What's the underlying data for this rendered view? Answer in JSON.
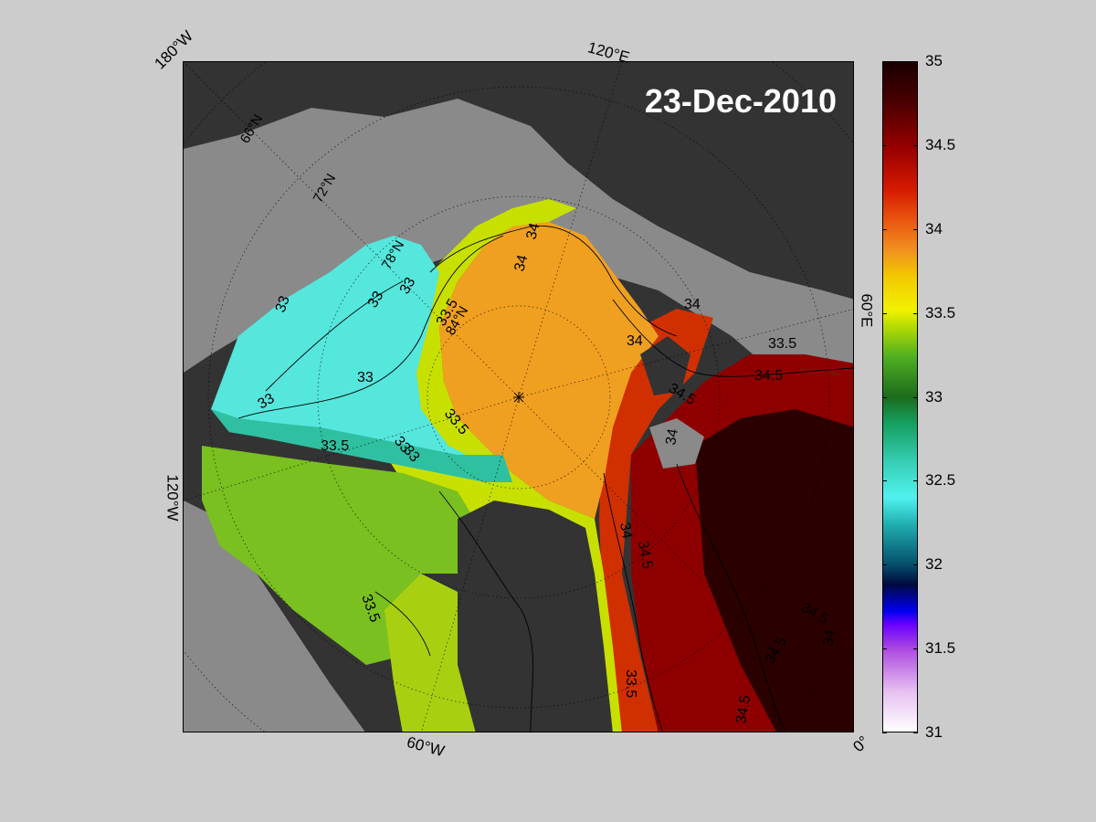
{
  "map": {
    "date": "23-Dec-2010",
    "longitude_labels": [
      "180°W",
      "120°E",
      "60°E",
      "0°",
      "60°W",
      "120°W"
    ],
    "latitude_labels": [
      "66°N",
      "72°N",
      "78°N",
      "84°N"
    ],
    "contour_labels": [
      "33",
      "33",
      "33",
      "33",
      "33",
      "33",
      "33",
      "33.5",
      "33.5",
      "33.5",
      "33.5",
      "33.5",
      "33.5",
      "34",
      "34",
      "34",
      "34",
      "34",
      "34",
      "34",
      "34.5",
      "34.5",
      "34.5",
      "34.5",
      "34.5",
      "34.5"
    ],
    "colors": {
      "background": "#cccccc",
      "land": "#333333",
      "sea_ice_mask": "#8a8a8a",
      "low_salinity": "#50f2ee",
      "mid_salinity": "#f2c800",
      "high_salinity": "#9a0000"
    }
  },
  "colorbar": {
    "ticks": [
      "35",
      "34.5",
      "34",
      "33.5",
      "33",
      "32.5",
      "32",
      "31.5",
      "31"
    ],
    "min": 31,
    "max": 35
  }
}
